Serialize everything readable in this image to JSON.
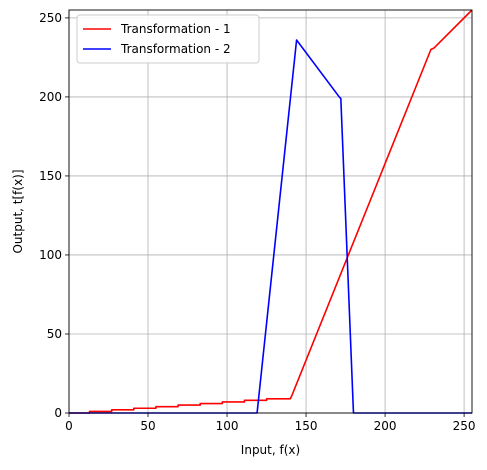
{
  "chart_data": {
    "type": "line",
    "xlabel": "Input, f(x)",
    "ylabel": "Output, t[f(x)]",
    "xlim": [
      0,
      255
    ],
    "ylim": [
      0,
      255
    ],
    "xticks": [
      0,
      50,
      100,
      150,
      200,
      250
    ],
    "yticks": [
      0,
      50,
      100,
      150,
      200,
      250
    ],
    "grid": true,
    "legend_placement": "upper-left",
    "series": [
      {
        "name": "Transformation - 1",
        "color": "#ff0000",
        "points": [
          [
            0,
            0
          ],
          [
            13,
            0
          ],
          [
            13,
            1
          ],
          [
            27,
            1
          ],
          [
            27,
            2
          ],
          [
            41,
            2
          ],
          [
            41,
            3
          ],
          [
            55,
            3
          ],
          [
            55,
            4
          ],
          [
            69,
            4
          ],
          [
            69,
            5
          ],
          [
            83,
            5
          ],
          [
            83,
            6
          ],
          [
            97,
            6
          ],
          [
            97,
            7
          ],
          [
            111,
            7
          ],
          [
            111,
            8
          ],
          [
            125,
            8
          ],
          [
            125,
            9
          ],
          [
            140,
            9
          ],
          [
            141,
            11
          ],
          [
            143,
            16
          ],
          [
            229,
            230
          ],
          [
            231,
            231
          ],
          [
            255,
            255
          ]
        ]
      },
      {
        "name": "Transformation - 2",
        "color": "#0000ff",
        "points": [
          [
            0,
            0
          ],
          [
            119,
            0
          ],
          [
            144,
            236
          ],
          [
            171,
            200
          ],
          [
            172,
            199
          ],
          [
            180,
            0
          ],
          [
            255,
            0
          ]
        ]
      }
    ]
  }
}
